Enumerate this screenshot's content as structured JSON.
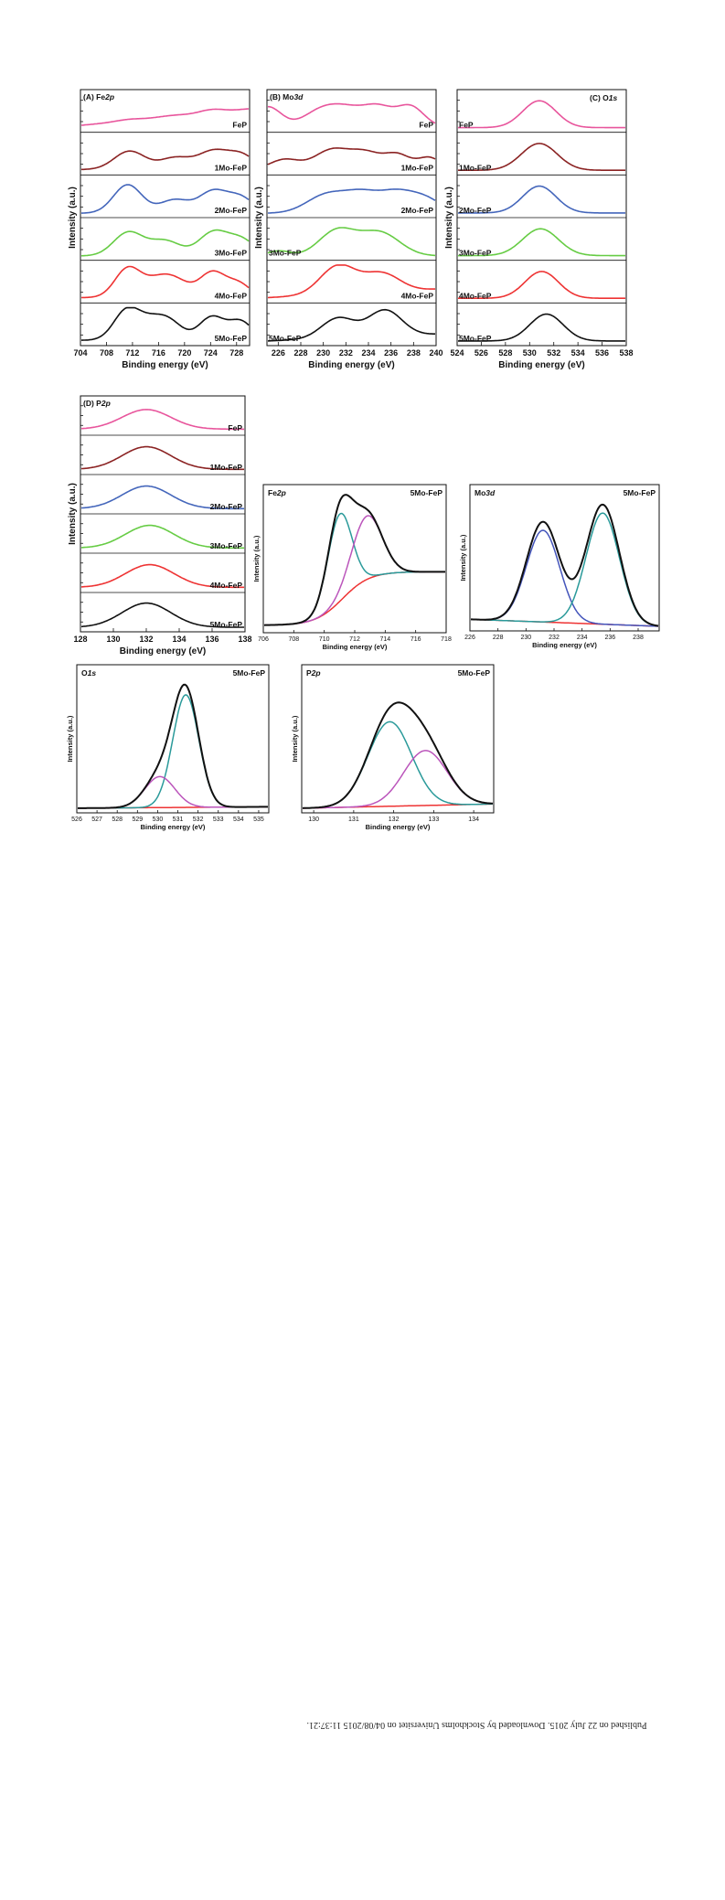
{
  "side_note": "Published on 22 July 2015. Downloaded by Stockholms Universitet on 04/08/2015 11:37:21.",
  "colors": {
    "FeP": "#e8559c",
    "1Mo-FeP": "#8b2323",
    "2Mo-FeP": "#4466bb",
    "3Mo-FeP": "#66cc44",
    "4Mo-FeP": "#ee3333",
    "5Mo-FeP": "#111111",
    "fit_total": "#111111",
    "fit_teal": "#2a9a9a",
    "fit_blue": "#4455bb",
    "fit_purple": "#bb55bb",
    "fit_background": "#ee3333"
  },
  "chart_data": [
    {
      "type": "line",
      "id": "A",
      "title": "(A) Fe2p",
      "xlabel": "Binding energy (eV)",
      "ylabel": "Intensity (a.u.)",
      "xlim": [
        704,
        730
      ],
      "xticks": [
        704,
        708,
        712,
        716,
        720,
        724,
        728
      ],
      "samples": [
        "FeP",
        "1Mo-FeP",
        "2Mo-FeP",
        "3Mo-FeP",
        "4Mo-FeP",
        "5Mo-FeP"
      ],
      "series": [
        {
          "name": "FeP",
          "peaks": [
            [
              0.05,
              711.3,
              2.0
            ],
            [
              0.12,
              724.3,
              2.0
            ],
            [
              0.05,
              718.0,
              2.5
            ],
            [
              0.04,
              730.0,
              2.0
            ]
          ],
          "slope": 0.45,
          "base": 0.1
        },
        {
          "name": "1Mo-FeP",
          "peaks": [
            [
              0.55,
              711.5,
              2.4
            ],
            [
              0.35,
              718.6,
              2.4
            ],
            [
              0.55,
              724.6,
              2.4
            ],
            [
              0.4,
              729.0,
              2.0
            ]
          ],
          "slope": 0.0,
          "base": 0.05
        },
        {
          "name": "2Mo-FeP",
          "peaks": [
            [
              0.85,
              711.2,
              2.2
            ],
            [
              0.4,
              718.5,
              2.3
            ],
            [
              0.65,
              724.5,
              2.2
            ],
            [
              0.45,
              728.8,
              2.0
            ]
          ],
          "slope": 0.0,
          "base": 0.02
        },
        {
          "name": "3Mo-FeP",
          "peaks": [
            [
              0.7,
              711.3,
              2.3
            ],
            [
              0.45,
              717.0,
              2.4
            ],
            [
              0.72,
              724.6,
              2.3
            ],
            [
              0.45,
              729.0,
              2.0
            ]
          ],
          "slope": 0.0,
          "base": 0.02
        },
        {
          "name": "4Mo-FeP",
          "peaks": [
            [
              0.85,
              711.2,
              2.0
            ],
            [
              0.5,
              716.0,
              2.4
            ],
            [
              0.35,
              719.0,
              2.2
            ],
            [
              0.75,
              724.4,
              2.0
            ],
            [
              0.4,
              728.5,
              1.8
            ]
          ],
          "slope": 0.0,
          "base": 0.05
        },
        {
          "name": "5Mo-FeP",
          "peaks": [
            [
              0.85,
              711.0,
              2.0
            ],
            [
              0.55,
              715.0,
              2.3
            ],
            [
              0.4,
              718.0,
              2.0
            ],
            [
              0.7,
              724.3,
              2.0
            ],
            [
              0.55,
              728.8,
              1.8
            ]
          ],
          "slope": 0.0,
          "base": 0.05
        }
      ]
    },
    {
      "type": "line",
      "id": "B",
      "title": "(B) Mo3d",
      "xlabel": "Binding energy (eV)",
      "ylabel": "Intensity (a.u.)",
      "xlim": [
        225,
        240
      ],
      "xticks": [
        226,
        228,
        230,
        232,
        234,
        236,
        238,
        240
      ],
      "samples": [
        "FeP",
        "1Mo-FeP",
        "2Mo-FeP",
        "3Mo-FeP",
        "4Mo-FeP",
        "5Mo-FeP"
      ],
      "series": [
        {
          "name": "FeP",
          "peaks": [
            [
              0.6,
              225.0,
              1.2
            ],
            [
              0.35,
              229.5,
              1.5
            ],
            [
              0.55,
              232.0,
              1.8
            ],
            [
              0.5,
              235.0,
              1.3
            ],
            [
              0.6,
              237.8,
              1.2
            ]
          ],
          "slope": 0.0,
          "base": 0.05
        },
        {
          "name": "1Mo-FeP",
          "peaks": [
            [
              0.6,
              230.8,
              1.6
            ],
            [
              0.45,
              233.8,
              1.3
            ],
            [
              0.45,
              236.6,
              1.2
            ],
            [
              0.3,
              226.5,
              1.3
            ],
            [
              0.35,
              239.5,
              1.0
            ]
          ],
          "slope": 0.0,
          "base": 0.05
        },
        {
          "name": "2Mo-FeP",
          "peaks": [
            [
              0.55,
              230.3,
              1.8
            ],
            [
              0.55,
              233.6,
              1.6
            ],
            [
              0.5,
              236.5,
              1.4
            ],
            [
              0.45,
              239.0,
              1.5
            ]
          ],
          "slope": 0.0,
          "base": 0.02
        },
        {
          "name": "3Mo-FeP",
          "peaks": [
            [
              0.75,
              231.2,
              1.6
            ],
            [
              0.7,
              235.0,
              1.8
            ],
            [
              0.15,
              226.0,
              1.0
            ]
          ],
          "slope": 0.0,
          "base": 0.02
        },
        {
          "name": "4Mo-FeP",
          "peaks": [
            [
              0.85,
              231.3,
              1.6
            ],
            [
              0.55,
              235.2,
              1.6
            ]
          ],
          "slope": 0.25,
          "base": 0.05
        },
        {
          "name": "5Mo-FeP",
          "peaks": [
            [
              0.6,
              231.3,
              1.5
            ],
            [
              0.78,
              235.5,
              1.5
            ]
          ],
          "slope": 0.2,
          "base": 0.03
        }
      ]
    },
    {
      "type": "line",
      "id": "C",
      "title": "(C) O1s",
      "xlabel": "Binding energy (eV)",
      "ylabel": "Intensity (a.u.)",
      "xlim": [
        524,
        538
      ],
      "xticks": [
        524,
        526,
        528,
        530,
        532,
        534,
        536,
        538
      ],
      "samples": [
        "FeP",
        "1Mo-FeP",
        "2Mo-FeP",
        "3Mo-FeP",
        "4Mo-FeP",
        "5Mo-FeP"
      ],
      "series": [
        {
          "name": "FeP",
          "peaks": [
            [
              0.8,
              530.8,
              1.4
            ]
          ],
          "slope": 0.0,
          "base": 0.03
        },
        {
          "name": "1Mo-FeP",
          "peaks": [
            [
              0.8,
              530.8,
              1.5
            ]
          ],
          "slope": 0.0,
          "base": 0.03
        },
        {
          "name": "2Mo-FeP",
          "peaks": [
            [
              0.8,
              530.8,
              1.4
            ]
          ],
          "slope": 0.0,
          "base": 0.03
        },
        {
          "name": "3Mo-FeP",
          "peaks": [
            [
              0.8,
              530.9,
              1.5
            ]
          ],
          "slope": 0.0,
          "base": 0.03
        },
        {
          "name": "4Mo-FeP",
          "peaks": [
            [
              0.8,
              531.0,
              1.4
            ]
          ],
          "slope": 0.0,
          "base": 0.03
        },
        {
          "name": "5Mo-FeP",
          "peaks": [
            [
              0.8,
              531.4,
              1.4
            ]
          ],
          "slope": 0.0,
          "base": 0.03
        }
      ]
    },
    {
      "type": "line",
      "id": "D",
      "title": "(D) P2p",
      "xlabel": "Binding energy (eV)",
      "ylabel": "Intensity (a.u.)",
      "xlim": [
        128,
        138
      ],
      "xticks": [
        128,
        130,
        132,
        134,
        136,
        138
      ],
      "samples": [
        "FeP",
        "1Mo-FeP",
        "2Mo-FeP",
        "3Mo-FeP",
        "4Mo-FeP",
        "5Mo-FeP"
      ],
      "series": [
        {
          "name": "FeP",
          "peaks": [
            [
              0.65,
              132.0,
              1.5
            ]
          ],
          "slope": 0.0,
          "base": 0.08
        },
        {
          "name": "1Mo-FeP",
          "peaks": [
            [
              0.75,
              132.0,
              1.5
            ]
          ],
          "slope": 0.0,
          "base": 0.05
        },
        {
          "name": "2Mo-FeP",
          "peaks": [
            [
              0.75,
              132.0,
              1.5
            ]
          ],
          "slope": 0.0,
          "base": 0.05
        },
        {
          "name": "3Mo-FeP",
          "peaks": [
            [
              0.75,
              132.2,
              1.5
            ]
          ],
          "slope": 0.0,
          "base": 0.05
        },
        {
          "name": "4Mo-FeP",
          "peaks": [
            [
              0.75,
              132.2,
              1.5
            ]
          ],
          "slope": 0.0,
          "base": 0.05
        },
        {
          "name": "5Mo-FeP",
          "peaks": [
            [
              0.8,
              132.0,
              1.5
            ]
          ],
          "slope": 0.0,
          "base": 0.03
        }
      ]
    },
    {
      "type": "line",
      "id": "E",
      "title": "Fe2p",
      "sample": "5Mo-FeP",
      "xlabel": "Binding energy (eV)",
      "ylabel": "Intensity (a.u.)",
      "xlim": [
        706,
        718
      ],
      "xticks": [
        706,
        708,
        710,
        712,
        714,
        716,
        718
      ],
      "components": [
        {
          "role": "total",
          "color_key": "fit_total",
          "peaks": [
            [
              0.62,
              711.0,
              0.8
            ],
            [
              0.45,
              712.8,
              1.0
            ]
          ],
          "step": [
            0.38,
            711.2,
            0.9
          ],
          "base": 0.04
        },
        {
          "role": "fit",
          "color_key": "fit_teal",
          "peaks": [
            [
              0.62,
              711.0,
              0.8
            ]
          ],
          "step": [
            0.38,
            711.2,
            0.9
          ],
          "base": 0.04
        },
        {
          "role": "fit",
          "color_key": "fit_purple",
          "peaks": [
            [
              0.45,
              712.8,
              1.0
            ]
          ],
          "step": [
            0.38,
            711.2,
            0.9
          ],
          "base": 0.04
        },
        {
          "role": "background",
          "color_key": "fit_background",
          "peaks": [],
          "step": [
            0.38,
            711.2,
            0.9
          ],
          "base": 0.04
        }
      ]
    },
    {
      "type": "line",
      "id": "F",
      "title": "Mo3d",
      "sample": "5Mo-FeP",
      "xlabel": "Binding energy (eV)",
      "ylabel": "Intensity (a.u.)",
      "xlim": [
        226,
        239.5
      ],
      "xticks": [
        226,
        228,
        230,
        232,
        234,
        236,
        238
      ],
      "components": [
        {
          "role": "total",
          "color_key": "fit_total",
          "peaks": [
            [
              0.72,
              231.2,
              1.2
            ],
            [
              0.86,
              235.5,
              1.2
            ]
          ],
          "line": [
            0.07,
            0.02
          ],
          "base": 0.0
        },
        {
          "role": "fit",
          "color_key": "fit_blue",
          "peaks": [
            [
              0.66,
              231.2,
              1.2
            ]
          ],
          "line": [
            0.07,
            0.02
          ],
          "base": 0.0
        },
        {
          "role": "fit",
          "color_key": "fit_teal",
          "peaks": [
            [
              0.8,
              235.5,
              1.2
            ]
          ],
          "line": [
            0.07,
            0.02
          ],
          "base": 0.0
        },
        {
          "role": "background",
          "color_key": "fit_background",
          "peaks": [],
          "line": [
            0.07,
            0.02
          ],
          "base": 0.0
        }
      ]
    },
    {
      "type": "line",
      "id": "G",
      "title": "O1s",
      "sample": "5Mo-FeP",
      "xlabel": "Binding energy (eV)",
      "ylabel": "Intensity (a.u.)",
      "xlim": [
        526,
        535.5
      ],
      "xticks": [
        526,
        527,
        528,
        529,
        530,
        531,
        532,
        533,
        534,
        535
      ],
      "components": [
        {
          "role": "total",
          "color_key": "fit_total",
          "peaks": [
            [
              0.82,
              531.4,
              0.65
            ],
            [
              0.22,
              530.1,
              0.75
            ]
          ],
          "line": [
            0.02,
            0.03
          ],
          "base": 0.0
        },
        {
          "role": "fit",
          "color_key": "fit_teal",
          "peaks": [
            [
              0.8,
              531.4,
              0.65
            ]
          ],
          "line": [
            0.02,
            0.03
          ],
          "base": 0.0
        },
        {
          "role": "fit",
          "color_key": "fit_purple",
          "peaks": [
            [
              0.22,
              530.1,
              0.75
            ]
          ],
          "line": [
            0.02,
            0.03
          ],
          "base": 0.0
        },
        {
          "role": "background",
          "color_key": "fit_background",
          "peaks": [],
          "line": [
            0.02,
            0.03
          ],
          "base": 0.0
        }
      ]
    },
    {
      "type": "line",
      "id": "H",
      "title": "P2p",
      "sample": "5Mo-FeP",
      "xlabel": "Binding energy (eV)",
      "ylabel": "Intensity (a.u.)",
      "xlim": [
        129.7,
        134.5
      ],
      "xticks": [
        130,
        131,
        132,
        133,
        134
      ],
      "components": [
        {
          "role": "total",
          "color_key": "fit_total",
          "peaks": [
            [
              0.6,
              131.9,
              0.55
            ],
            [
              0.39,
              132.8,
              0.55
            ]
          ],
          "line": [
            0.02,
            0.05
          ],
          "base": 0.0
        },
        {
          "role": "fit",
          "color_key": "fit_teal",
          "peaks": [
            [
              0.6,
              131.9,
              0.55
            ]
          ],
          "line": [
            0.02,
            0.05
          ],
          "base": 0.0
        },
        {
          "role": "fit",
          "color_key": "fit_purple",
          "peaks": [
            [
              0.39,
              132.8,
              0.55
            ]
          ],
          "line": [
            0.02,
            0.05
          ],
          "base": 0.0
        },
        {
          "role": "background",
          "color_key": "fit_background",
          "peaks": [],
          "line": [
            0.02,
            0.05
          ],
          "base": 0.0
        }
      ]
    }
  ]
}
